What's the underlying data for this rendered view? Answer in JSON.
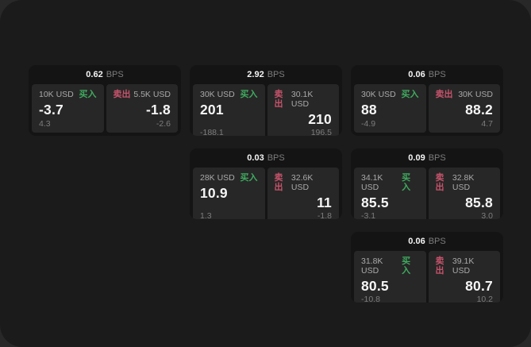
{
  "theme": {
    "background": "#282828",
    "panel": "#1b1b1b",
    "card": "#141414",
    "pane": "#272727",
    "buy_color": "#3fab5f",
    "sell_color": "#c6536b",
    "text_primary": "#f5f5f5",
    "text_label": "#a9a9a9",
    "text_muted": "#7d7d7d"
  },
  "cards": [
    {
      "row": 1,
      "col": 1,
      "bps": "0.62",
      "unit": "BPS",
      "buy": {
        "amount": "10K USD",
        "label": "买入",
        "value": "-3.7",
        "sub": "4.3"
      },
      "sell": {
        "label": "卖出",
        "amount": "5.5K USD",
        "value": "-1.8",
        "sub": "-2.6"
      }
    },
    {
      "row": 1,
      "col": 2,
      "bps": "2.92",
      "unit": "BPS",
      "buy": {
        "amount": "30K USD",
        "label": "买入",
        "value": "201",
        "sub": "-188.1"
      },
      "sell": {
        "label": "卖出",
        "amount": "30.1K USD",
        "value": "210",
        "sub": "196.5"
      }
    },
    {
      "row": 1,
      "col": 3,
      "bps": "0.06",
      "unit": "BPS",
      "buy": {
        "amount": "30K USD",
        "label": "买入",
        "value": "88",
        "sub": "-4.9"
      },
      "sell": {
        "label": "卖出",
        "amount": "30K USD",
        "value": "88.2",
        "sub": "4.7"
      }
    },
    {
      "row": 2,
      "col": 2,
      "bps": "0.03",
      "unit": "BPS",
      "buy": {
        "amount": "28K USD",
        "label": "买入",
        "value": "10.9",
        "sub": "1.3"
      },
      "sell": {
        "label": "卖出",
        "amount": "32.6K USD",
        "value": "11",
        "sub": "-1.8"
      }
    },
    {
      "row": 2,
      "col": 3,
      "bps": "0.09",
      "unit": "BPS",
      "buy": {
        "amount": "34.1K USD",
        "label": "买入",
        "value": "85.5",
        "sub": "-3.1"
      },
      "sell": {
        "label": "卖出",
        "amount": "32.8K USD",
        "value": "85.8",
        "sub": "3.0"
      }
    },
    {
      "row": 3,
      "col": 3,
      "bps": "0.06",
      "unit": "BPS",
      "buy": {
        "amount": "31.8K USD",
        "label": "买入",
        "value": "80.5",
        "sub": "-10.8"
      },
      "sell": {
        "label": "卖出",
        "amount": "39.1K USD",
        "value": "80.7",
        "sub": "10.2"
      }
    }
  ]
}
